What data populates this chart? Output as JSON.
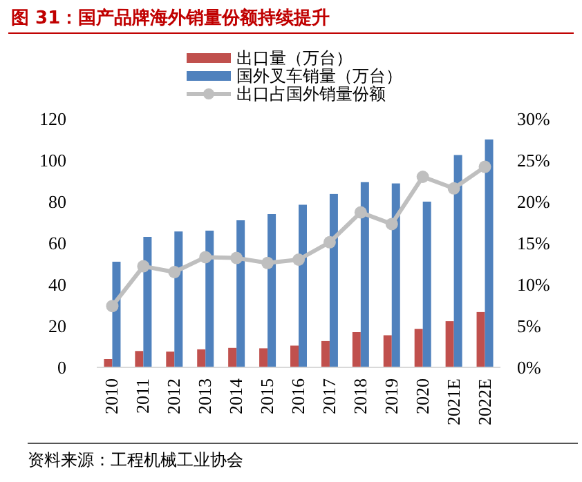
{
  "chart_data": {
    "type": "bar",
    "title": "图 31：国产品牌海外销量份额持续提升",
    "annotations": [
      "资料来源：工程机械工业协会"
    ],
    "categories": [
      "2010",
      "2011",
      "2012",
      "2013",
      "2014",
      "2015",
      "2016",
      "2017",
      "2018",
      "2019",
      "2020",
      "2021E",
      "2022E"
    ],
    "series": [
      {
        "name": "出口量（万台）",
        "color": "#c0504d",
        "values": [
          4,
          7.9,
          7.6,
          8.7,
          9.4,
          9.2,
          10.5,
          12.7,
          17,
          15.5,
          18.6,
          22.3,
          26.7
        ]
      },
      {
        "name": "国外叉车销量（万台）",
        "color": "#4f81bd",
        "values": [
          51,
          63,
          65.6,
          66,
          71,
          74,
          78.5,
          83.7,
          89.4,
          88.8,
          80,
          102.5,
          110
        ]
      },
      {
        "name": "出口占国外销量份额",
        "type": "line",
        "axis": "y2",
        "color": "#bfbfbf",
        "marker": "circle",
        "values": [
          7.4,
          12.2,
          11.5,
          13.3,
          13.2,
          12.6,
          13,
          15.1,
          18.7,
          17.3,
          23,
          21.6,
          24.2
        ]
      }
    ],
    "ylim": [
      0,
      120
    ],
    "yticks": [
      0,
      20,
      40,
      60,
      80,
      100,
      120
    ],
    "y2lim": [
      0,
      30
    ],
    "y2ticks": [
      {
        "value": 0,
        "label": "0%"
      },
      {
        "value": 5,
        "label": "5%"
      },
      {
        "value": 10,
        "label": "10%"
      },
      {
        "value": 15,
        "label": "15%"
      },
      {
        "value": 20,
        "label": "20%"
      },
      {
        "value": 25,
        "label": "25%"
      },
      {
        "value": 30,
        "label": "30%"
      }
    ],
    "legend": "top",
    "grid": false
  }
}
